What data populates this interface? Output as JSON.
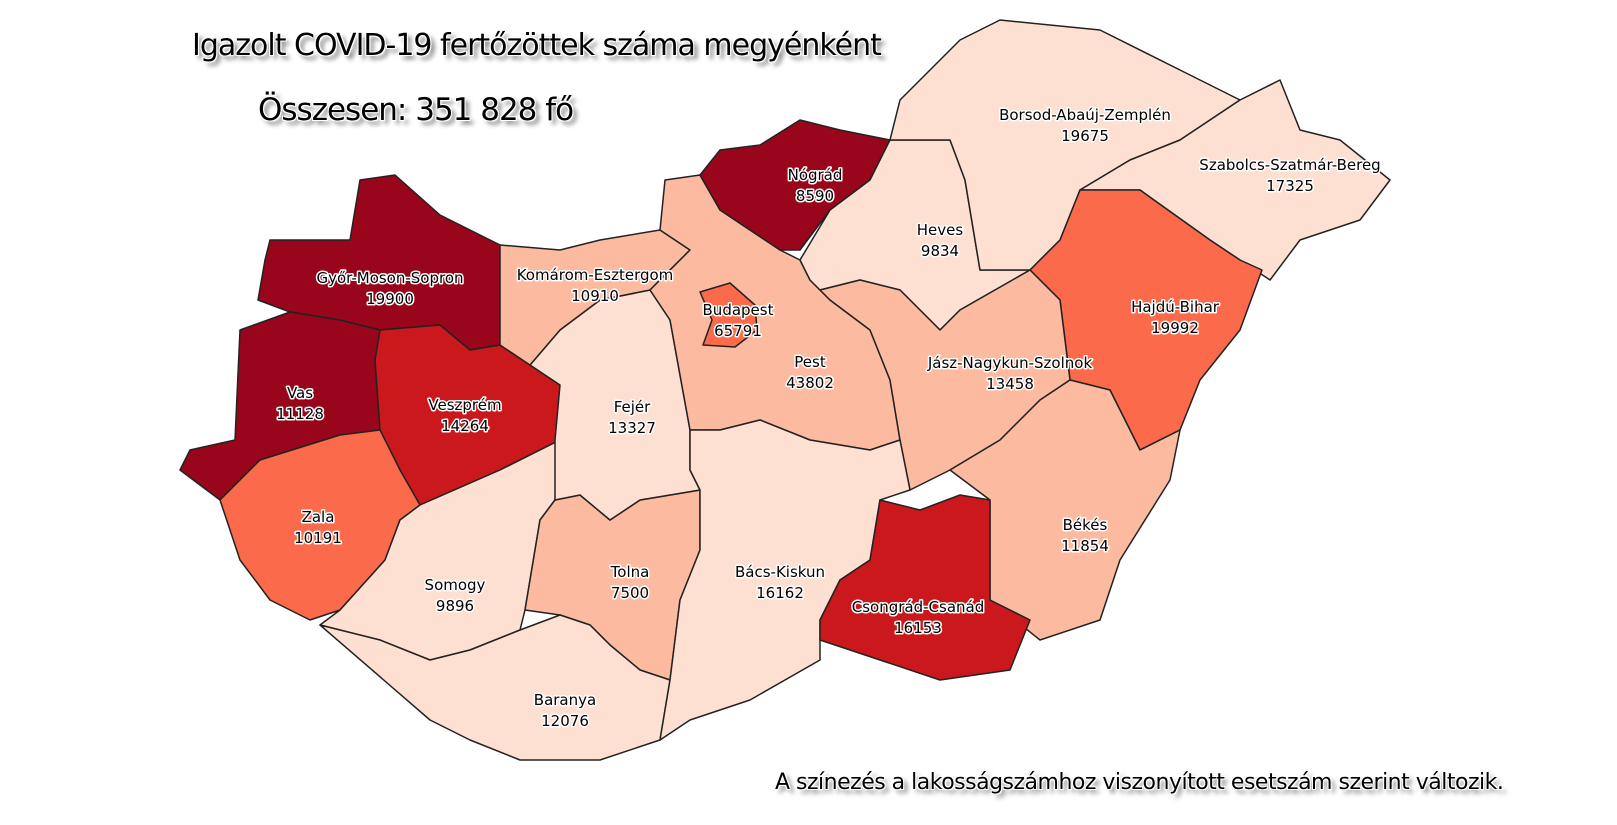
{
  "title": "Igazolt COVID-19 fertőzöttek száma megyénként",
  "total": "Összesen: 351 828 fő",
  "note": "A színezés a lakosságszámhoz viszonyított esetszám szerint változik.",
  "colors": {
    "level1": "#fee0d2",
    "level2": "#fcbba1",
    "level3": "#fb6a4a",
    "level4": "#cb181d",
    "level5": "#99061c"
  },
  "counties": [
    {
      "name": "Győr-Moson-Sopron",
      "cases": "19900",
      "level": 5
    },
    {
      "name": "Vas",
      "cases": "11128",
      "level": 5
    },
    {
      "name": "Veszprém",
      "cases": "14264",
      "level": 4
    },
    {
      "name": "Zala",
      "cases": "10191",
      "level": 3
    },
    {
      "name": "Somogy",
      "cases": "9896",
      "level": 1
    },
    {
      "name": "Tolna",
      "cases": "7500",
      "level": 2
    },
    {
      "name": "Baranya",
      "cases": "12076",
      "level": 1
    },
    {
      "name": "Fejér",
      "cases": "13327",
      "level": 1
    },
    {
      "name": "Komárom-Esztergom",
      "cases": "10910",
      "level": 2
    },
    {
      "name": "Pest",
      "cases": "43802",
      "level": 2
    },
    {
      "name": "Budapest",
      "cases": "65791",
      "level": 3
    },
    {
      "name": "Nógrád",
      "cases": "8590",
      "level": 5
    },
    {
      "name": "Heves",
      "cases": "9834",
      "level": 1
    },
    {
      "name": "Borsod-Abaúj-Zemplén",
      "cases": "19675",
      "level": 1
    },
    {
      "name": "Szabolcs-Szatmár-Bereg",
      "cases": "17325",
      "level": 1
    },
    {
      "name": "Hajdú-Bihar",
      "cases": "19992",
      "level": 3
    },
    {
      "name": "Jász-Nagykun-Szolnok",
      "cases": "13458",
      "level": 2
    },
    {
      "name": "Békés",
      "cases": "11854",
      "level": 2
    },
    {
      "name": "Bács-Kiskun",
      "cases": "16162",
      "level": 1
    },
    {
      "name": "Csongrád-Csanád",
      "cases": "16153",
      "level": 4
    }
  ]
}
